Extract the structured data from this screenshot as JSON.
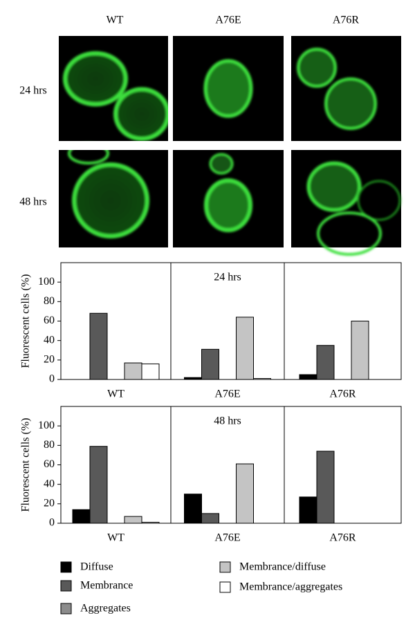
{
  "images": {
    "columns": [
      "WT",
      "A76E",
      "A76R"
    ],
    "rows": [
      "24 hrs",
      "48 hrs"
    ]
  },
  "chart_data": [
    {
      "type": "bar",
      "panel_label": "24 hrs",
      "y_label": "Fluorescent cells (%)",
      "categories": [
        "WT",
        "A76E",
        "A76R"
      ],
      "ylim": [
        0,
        120
      ],
      "yticks": [
        0,
        20,
        40,
        60,
        80,
        100
      ],
      "series": [
        {
          "name": "Diffuse",
          "color": "#000000",
          "values": [
            0,
            2,
            5
          ]
        },
        {
          "name": "Membrance",
          "color": "#595959",
          "values": [
            68,
            31,
            35
          ]
        },
        {
          "name": "Aggregates",
          "color": "#8c8c8c",
          "values": [
            0,
            0,
            0
          ]
        },
        {
          "name": "Membrance/diffuse",
          "color": "#c4c4c4",
          "values": [
            17,
            64,
            60
          ]
        },
        {
          "name": "Membrance/aggregates",
          "color": "#ffffff",
          "values": [
            16,
            1,
            0
          ]
        }
      ]
    },
    {
      "type": "bar",
      "panel_label": "48 hrs",
      "y_label": "Fluorescent cells (%)",
      "categories": [
        "WT",
        "A76E",
        "A76R"
      ],
      "ylim": [
        0,
        120
      ],
      "yticks": [
        0,
        20,
        40,
        60,
        80,
        100
      ],
      "series": [
        {
          "color": "#000000",
          "values": [
            14,
            30,
            27
          ]
        },
        {
          "color": "#595959",
          "values": [
            79,
            10,
            74
          ]
        },
        {
          "color": "#8c8c8c",
          "values": [
            0,
            0,
            0
          ]
        },
        {
          "color": "#c4c4c4",
          "values": [
            7,
            61,
            0
          ]
        },
        {
          "color": "#ffffff",
          "values": [
            1,
            0,
            0
          ]
        }
      ]
    }
  ]
}
